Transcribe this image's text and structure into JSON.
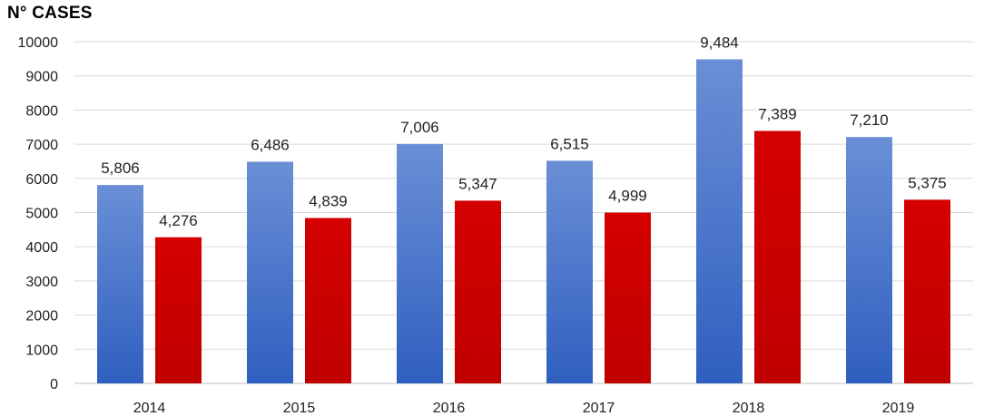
{
  "chart_data": {
    "type": "bar",
    "title": "N° CASES",
    "categories": [
      "2014",
      "2015",
      "2016",
      "2017",
      "2018",
      "2019"
    ],
    "series": [
      {
        "values": [
          5806,
          6486,
          7006,
          6515,
          9484,
          7210
        ],
        "color": "#4472c4"
      },
      {
        "values": [
          4276,
          4839,
          5347,
          4999,
          7389,
          5375
        ],
        "color": "#c00000"
      }
    ],
    "data_labels": [
      [
        "5,806",
        "6,486",
        "7,006",
        "6,515",
        "9,484",
        "7,210"
      ],
      [
        "4,276",
        "4,839",
        "5,347",
        "4,999",
        "7,389",
        "5,375"
      ]
    ],
    "y_ticks": [
      "0",
      "1000",
      "2000",
      "3000",
      "4000",
      "5000",
      "6000",
      "7000",
      "8000",
      "9000",
      "10000"
    ],
    "ylim": [
      0,
      10000
    ],
    "grid": true,
    "legend": "none"
  }
}
